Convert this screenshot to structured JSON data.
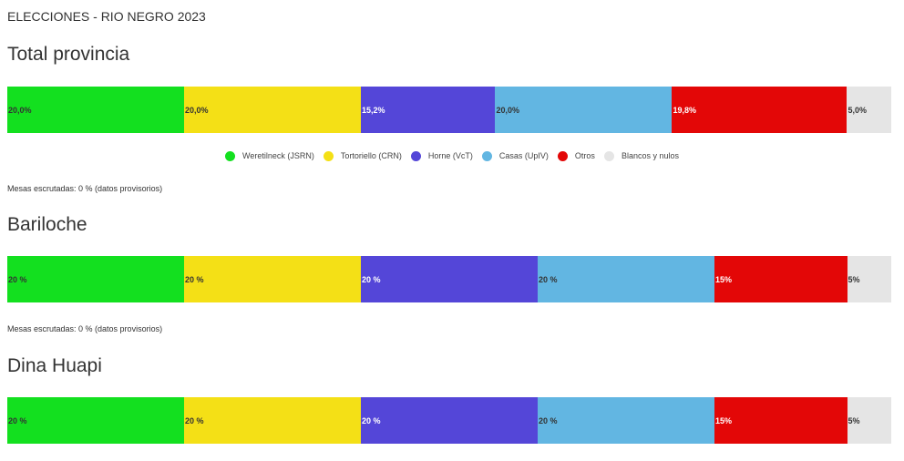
{
  "page": {
    "title": "ELECCIONES - RIO NEGRO 2023"
  },
  "legend": [
    {
      "label": "Weretilneck (JSRN)",
      "color": "#13e01f"
    },
    {
      "label": "Tortoriello (CRN)",
      "color": "#f4e016"
    },
    {
      "label": "Horne (VcT)",
      "color": "#5446d8"
    },
    {
      "label": "Casas (UpIV)",
      "color": "#62b6e2"
    },
    {
      "label": "Otros",
      "color": "#e30707"
    },
    {
      "label": "Blancos y nulos",
      "color": "#e5e5e5"
    }
  ],
  "chart_data": [
    {
      "type": "bar",
      "subtype": "100%-stacked-horizontal",
      "title": "Total provincia",
      "series": [
        {
          "name": "Weretilneck (JSRN)",
          "value": 20.0,
          "label": "20,0%"
        },
        {
          "name": "Tortoriello (CRN)",
          "value": 20.0,
          "label": "20,0%"
        },
        {
          "name": "Horne (VcT)",
          "value": 15.2,
          "label": "15,2%"
        },
        {
          "name": "Casas (UpIV)",
          "value": 20.0,
          "label": "20,0%"
        },
        {
          "name": "Otros",
          "value": 19.8,
          "label": "19,8%"
        },
        {
          "name": "Blancos y nulos",
          "value": 5.0,
          "label": "5,0%"
        }
      ],
      "note": "Mesas escrutadas: 0 % (datos provisorios)",
      "legend_position": "bottom"
    },
    {
      "type": "bar",
      "subtype": "100%-stacked-horizontal",
      "title": "Bariloche",
      "series": [
        {
          "name": "Weretilneck (JSRN)",
          "value": 20,
          "label": "20 %"
        },
        {
          "name": "Tortoriello (CRN)",
          "value": 20,
          "label": "20 %"
        },
        {
          "name": "Horne (VcT)",
          "value": 20,
          "label": "20 %"
        },
        {
          "name": "Casas (UpIV)",
          "value": 20,
          "label": "20 %"
        },
        {
          "name": "Otros",
          "value": 15,
          "label": "15%"
        },
        {
          "name": "Blancos y nulos",
          "value": 5,
          "label": "5%"
        }
      ],
      "note": "Mesas escrutadas: 0 %  (datos provisorios)"
    },
    {
      "type": "bar",
      "subtype": "100%-stacked-horizontal",
      "title": "Dina Huapi",
      "series": [
        {
          "name": "Weretilneck (JSRN)",
          "value": 20,
          "label": "20 %"
        },
        {
          "name": "Tortoriello (CRN)",
          "value": 20,
          "label": "20 %"
        },
        {
          "name": "Horne (VcT)",
          "value": 20,
          "label": "20 %"
        },
        {
          "name": "Casas (UpIV)",
          "value": 20,
          "label": "20 %"
        },
        {
          "name": "Otros",
          "value": 15,
          "label": "15%"
        },
        {
          "name": "Blancos y nulos",
          "value": 5,
          "label": "5%"
        }
      ]
    }
  ]
}
